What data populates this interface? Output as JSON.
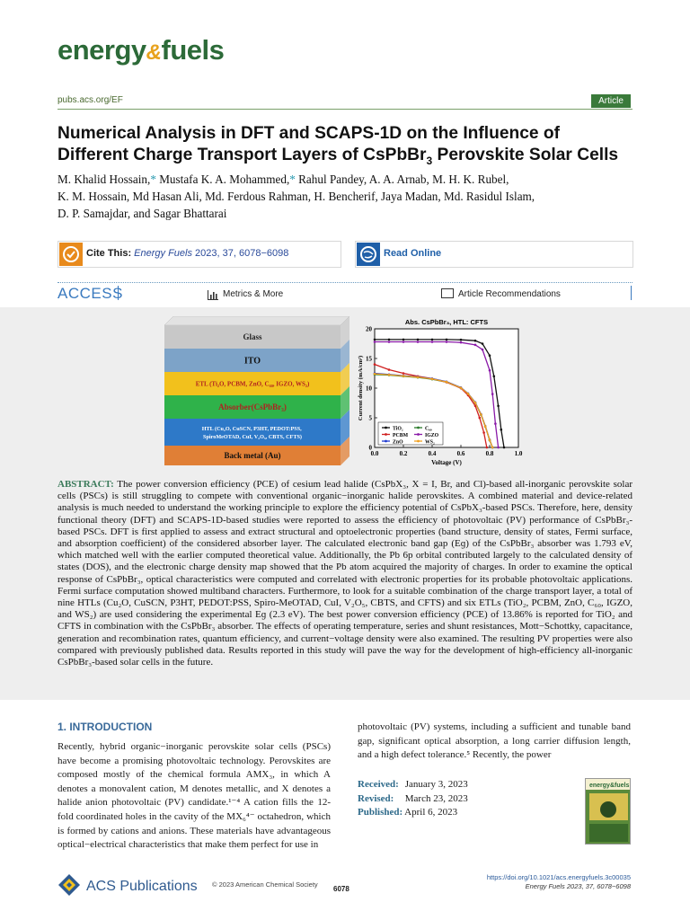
{
  "header": {
    "logo_left": "energy",
    "logo_amp": "&",
    "logo_right": "fuels",
    "journal_url": "pubs.acs.org/EF",
    "badge": "Article"
  },
  "title": {
    "line1": "Numerical Analysis in DFT and SCAPS-1D on the Influence of",
    "line2_pre": "Different Charge Transport Layers of CsPbBr",
    "line2_sub": "3",
    "line2_post": " Perovskite Solar Cells"
  },
  "authors": {
    "a1": "M. Khalid Hossain,",
    "star": "*",
    "a2": " Mustafa K. A. Mohammed,",
    "a3": " Rahul Pandey, A. A. Arnab, M. H. K. Rubel,",
    "line2": "K. M. Hossain, Md Hasan Ali, Md. Ferdous Rahman, H. Bencherif, Jaya Madan, Md. Rasidul Islam,",
    "line3": "D. P. Samajdar, and Sagar Bhattarai"
  },
  "cite": {
    "label": "Cite This: ",
    "ref": "Energy Fuels",
    "ref_rest": " 2023, 37, 6078−6098"
  },
  "read_online": "Read Online",
  "access": {
    "label": "ACCESS",
    "metrics": "Metrics & More",
    "recommendations": "Article Recommendations"
  },
  "toc": {
    "layers": [
      {
        "label": "Glass",
        "color": "#c8c8c8",
        "text_color": "#222"
      },
      {
        "label": "ITO",
        "color": "#7da3c8",
        "text_color": "#111"
      },
      {
        "label": "ETL (Ti₂O, PCBM, ZnO, C₆₀, IGZO, WS₂)",
        "color": "#f2c11c",
        "text_color": "#b02020"
      },
      {
        "label": "Absorber(CsPbBr₃)",
        "color": "#2fb24a",
        "text_color": "#b02020"
      },
      {
        "label": "HTL (Cu₂O, CuSCN, P3HT, PEDOT:PSS, SpiroMeOTAD, CuI, V₂O₅, CBTS, CFTS)",
        "color": "#2e79c8",
        "text_color": "#ffffff"
      },
      {
        "label": "Back metal (Au)",
        "color": "#e07f36",
        "text_color": "#111"
      }
    ]
  },
  "chart_data": {
    "type": "line",
    "title": "Abs. CsPbBr₃, HTL: CFTS",
    "xlabel": "Voltage (V)",
    "ylabel": "Current density (mA/cm²)",
    "xlim": [
      0.0,
      1.0
    ],
    "ylim": [
      0,
      20
    ],
    "x_ticks": [
      "0.0",
      "0.2",
      "0.4",
      "0.6",
      "0.8",
      "1.0"
    ],
    "y_ticks": [
      "0",
      "5",
      "10",
      "15",
      "20"
    ],
    "series": [
      {
        "name": "TiO₂",
        "color": "#111111",
        "x": [
          0,
          0.1,
          0.2,
          0.3,
          0.4,
          0.5,
          0.6,
          0.7,
          0.75,
          0.8,
          0.83,
          0.86,
          0.88,
          0.9
        ],
        "y": [
          18.2,
          18.2,
          18.2,
          18.2,
          18.2,
          18.2,
          18.15,
          18.0,
          17.5,
          15.5,
          12,
          7,
          3,
          0
        ]
      },
      {
        "name": "C₆₀",
        "color": "#2a7a2a",
        "x": [
          0,
          0.1,
          0.2,
          0.3,
          0.4,
          0.5,
          0.6,
          0.65,
          0.7,
          0.74,
          0.77,
          0.8,
          0.82
        ],
        "y": [
          12.3,
          12.2,
          12.0,
          11.8,
          11.5,
          11.0,
          10.0,
          9.0,
          7.5,
          5.5,
          3.5,
          1.2,
          0
        ]
      },
      {
        "name": "PCBM",
        "color": "#d02020",
        "x": [
          0,
          0.1,
          0.2,
          0.3,
          0.4,
          0.5,
          0.6,
          0.65,
          0.7,
          0.73,
          0.76,
          0.78
        ],
        "y": [
          14.0,
          13.1,
          12.5,
          12.0,
          11.6,
          11.0,
          10.0,
          8.8,
          7.0,
          5.0,
          2.5,
          0
        ]
      },
      {
        "name": "IGZO",
        "color": "#8a1aa8",
        "x": [
          0,
          0.1,
          0.2,
          0.3,
          0.4,
          0.5,
          0.6,
          0.7,
          0.75,
          0.8,
          0.82,
          0.84,
          0.86
        ],
        "y": [
          17.8,
          17.8,
          17.8,
          17.8,
          17.8,
          17.8,
          17.7,
          17.3,
          16.5,
          13.0,
          9.0,
          4.0,
          0
        ]
      },
      {
        "name": "ZnO",
        "color": "#1f3ad0",
        "x": [
          0,
          0.1,
          0.2,
          0.3,
          0.4,
          0.5,
          0.6,
          0.65,
          0.7,
          0.74,
          0.77,
          0.8,
          0.82
        ],
        "y": [
          12.5,
          12.3,
          12.1,
          11.9,
          11.6,
          11.1,
          10.1,
          9.1,
          7.6,
          5.6,
          3.6,
          1.3,
          0
        ]
      },
      {
        "name": "WS₂",
        "color": "#f0a020",
        "x": [
          0,
          0.1,
          0.2,
          0.3,
          0.4,
          0.5,
          0.6,
          0.65,
          0.7,
          0.74,
          0.77,
          0.8,
          0.82
        ],
        "y": [
          12.4,
          12.25,
          12.05,
          11.85,
          11.55,
          11.05,
          10.05,
          9.05,
          7.55,
          5.55,
          3.55,
          1.25,
          0
        ]
      }
    ],
    "legend": "bottom-left"
  },
  "abstract": {
    "lead": "ABSTRACT:",
    "text": " The power conversion efficiency (PCE) of cesium lead halide (CsPbX₃, X = I, Br, and Cl)-based all-inorganic perovskite solar cells (PSCs) is still struggling to compete with conventional organic−inorganic halide perovskites. A combined material and device-related analysis is much needed to understand the working principle to explore the efficiency potential of CsPbX₃-based PSCs. Therefore, here, density functional theory (DFT) and SCAPS-1D-based studies were reported to assess the efficiency of photovoltaic (PV) performance of CsPbBr₃-based PSCs. DFT is first applied to assess and extract structural and optoelectronic properties (band structure, density of states, Fermi surface, and absorption coefficient) of the considered absorber layer. The calculated electronic band gap (Eɡ) of the CsPbBr₃ absorber was 1.793 eV, which matched well with the earlier computed theoretical value. Additionally, the Pb 6p orbital contributed largely to the calculated density of states (DOS), and the electronic charge density map showed that the Pb atom acquired the majority of charges. In order to examine the optical response of CsPbBr₃, optical characteristics were computed and correlated with electronic properties for its probable photovoltaic applications. Fermi surface computation showed multiband characters. Furthermore, to look for a suitable combination of the charge transport layer, a total of nine HTLs (Cu₂O, CuSCN, P3HT, PEDOT:PSS, Spiro-MeOTAD, CuI, V₂O₅, CBTS, and CFTS) and six ETLs (TiO₂, PCBM, ZnO, C₆₀, IGZO, and WS₂) are used considering the experimental Eɡ (2.3 eV). The best power conversion efficiency (PCE) of 13.86% is reported for TiO₂ and CFTS in combination with the CsPbBr₃ absorber. The effects of operating temperature, series and shunt resistances, Mott−Schottky, capacitance, generation and recombination rates, quantum efficiency, and current−voltage density were also examined. The resulting PV properties were also compared with previously published data. Results reported in this study will pave the way for the development of high-efficiency all-inorganic CsPbBr₃-based solar cells in the future."
  },
  "intro": {
    "heading": "1. INTRODUCTION",
    "col1": "Recently, hybrid organic−inorganic perovskite solar cells (PSCs) have become a promising photovoltaic technology. Perovskites are composed mostly of the chemical formula AMX₃, in which A denotes a monovalent cation, M denotes metallic, and X denotes a halide anion photovoltaic (PV) candidate.¹⁻⁴ A cation fills the 12-fold coordinated holes in the cavity of the MX₆⁴⁻ octahedron, which is formed by cations and anions. These materials have advantageous optical−electrical characteristics that make them perfect for use in",
    "col2": "photovoltaic (PV) systems, including a sufficient and tunable band gap, significant optical absorption, a long carrier diffusion length, and a high defect tolerance.⁵ Recently, the power"
  },
  "dates": {
    "received_label": "Received:",
    "received": "January 3, 2023",
    "revised_label": "Revised:",
    "revised": "March 23, 2023",
    "published_label": "Published:",
    "published": "April 6, 2023"
  },
  "footer": {
    "publisher": "ACS Publications",
    "copyright": "© 2023 American Chemical Society",
    "page": "6078",
    "doi": "https://doi.org/10.1021/acs.energyfuels.3c00035",
    "citation": "Energy Fuels 2023, 37, 6078−6098"
  }
}
